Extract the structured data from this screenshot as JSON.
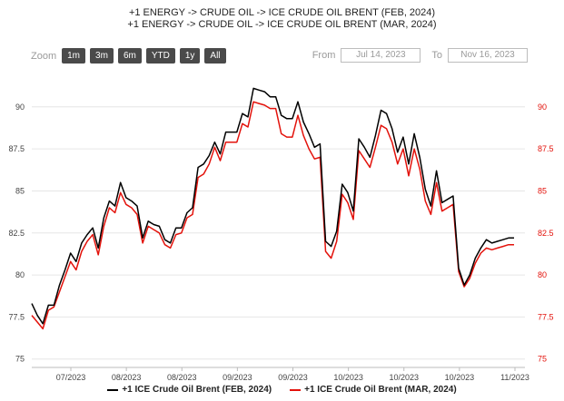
{
  "header": {
    "title_line1": "+1 ENERGY -> CRUDE OIL -> ICE CRUDE OIL BRENT (FEB, 2024)",
    "title_line2": "+1 ENERGY -> CRUDE OIL -> ICE CRUDE OIL BRENT (MAR, 2024)"
  },
  "toolbar": {
    "zoom_label": "Zoom",
    "buttons": [
      "1m",
      "3m",
      "6m",
      "YTD",
      "1y",
      "All"
    ],
    "from_label": "From",
    "from_value": "Jul 14, 2023",
    "to_label": "To",
    "to_value": "Nov 16, 2023"
  },
  "colors": {
    "series1": "#000000",
    "series2": "#e3120b",
    "grid": "#e6e6e6"
  },
  "chart_data": {
    "type": "line",
    "x_tick_labels": [
      "07/2023",
      "08/2023",
      "08/2023",
      "09/2023",
      "09/2023",
      "10/2023",
      "10/2023",
      "10/2023",
      "11/2023"
    ],
    "y_left_ticks": [
      75,
      77.5,
      80,
      82.5,
      85,
      87.5,
      90
    ],
    "y_left_tick_labels": [
      "75",
      "77.5",
      "80",
      "82.5",
      "85",
      "87.5",
      "90"
    ],
    "y_right_ticks": [
      75,
      77.5,
      80,
      82.5,
      85,
      87.5,
      90
    ],
    "y_right_tick_labels": [
      "75",
      "77.5",
      "80",
      "82.5",
      "85",
      "87.5",
      "90"
    ],
    "ylim": [
      74.5,
      91.5
    ],
    "grid": true,
    "legend": "bottom",
    "x": [
      0,
      1,
      2,
      3,
      4,
      5,
      6,
      7,
      8,
      9,
      10,
      11,
      12,
      13,
      14,
      15,
      16,
      17,
      18,
      19,
      20,
      21,
      22,
      23,
      24,
      25,
      26,
      27,
      28,
      29,
      30,
      31,
      32,
      33,
      34,
      35,
      36,
      37,
      38,
      39,
      40,
      41,
      42,
      43,
      44,
      45,
      46,
      47,
      48,
      49,
      50,
      51,
      52,
      53,
      54,
      55,
      56,
      57,
      58,
      59,
      60,
      61,
      62,
      63,
      64,
      65,
      66,
      67,
      68,
      69,
      70,
      71,
      72,
      73,
      74,
      75,
      76,
      77,
      78,
      79,
      80,
      81,
      82,
      83,
      84,
      85,
      86,
      87
    ],
    "series": [
      {
        "name": "+1 ICE Crude Oil Brent (FEB, 2024)",
        "values": [
          78.3,
          77.6,
          77.1,
          78.2,
          78.2,
          79.4,
          80.3,
          81.3,
          80.8,
          81.9,
          82.4,
          82.8,
          81.6,
          83.4,
          84.4,
          84.1,
          85.5,
          84.6,
          84.4,
          84.1,
          82.2,
          83.2,
          83.0,
          82.9,
          82.1,
          81.9,
          82.8,
          82.8,
          83.7,
          84.0,
          86.4,
          86.6,
          87.1,
          87.9,
          87.2,
          88.5,
          88.5,
          88.5,
          89.6,
          89.4,
          91.1,
          91.0,
          90.9,
          90.6,
          90.6,
          89.5,
          89.3,
          89.3,
          90.3,
          89.1,
          88.4,
          87.6,
          87.8,
          82.0,
          81.7,
          82.6,
          85.4,
          84.9,
          83.8,
          88.1,
          87.6,
          87.0,
          88.3,
          89.8,
          89.6,
          88.7,
          87.3,
          88.2,
          86.6,
          88.4,
          87.0,
          85.1,
          84.1,
          86.2,
          84.3,
          84.5,
          84.7,
          80.4,
          79.4,
          80.0,
          81.0,
          81.6,
          82.1,
          81.9,
          82.0,
          82.1,
          82.2,
          82.2
        ]
      },
      {
        "name": "+1 ICE Crude Oil Brent (MAR, 2024)",
        "values": [
          77.6,
          77.2,
          76.8,
          77.9,
          78.1,
          79.0,
          79.9,
          80.8,
          80.3,
          81.4,
          82.0,
          82.4,
          81.2,
          82.9,
          84.0,
          83.7,
          84.9,
          84.2,
          84.0,
          83.6,
          81.9,
          82.9,
          82.7,
          82.5,
          81.8,
          81.6,
          82.4,
          82.5,
          83.4,
          83.6,
          85.8,
          86.0,
          86.6,
          87.6,
          86.8,
          87.9,
          87.9,
          87.9,
          89.0,
          88.8,
          90.3,
          90.2,
          90.1,
          89.9,
          89.9,
          88.4,
          88.2,
          88.2,
          89.5,
          88.3,
          87.5,
          86.9,
          87.0,
          81.4,
          81.0,
          82.0,
          84.8,
          84.3,
          83.3,
          87.4,
          86.9,
          86.4,
          87.6,
          88.9,
          88.7,
          87.9,
          86.6,
          87.5,
          85.9,
          87.5,
          86.3,
          84.4,
          83.6,
          85.5,
          83.8,
          84.0,
          84.2,
          80.2,
          79.3,
          79.8,
          80.7,
          81.3,
          81.6,
          81.5,
          81.6,
          81.7,
          81.8,
          81.8
        ]
      }
    ]
  }
}
